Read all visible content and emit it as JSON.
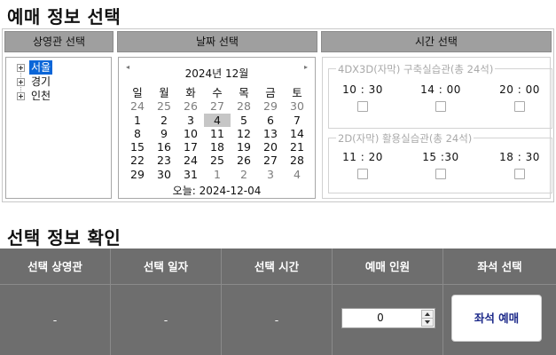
{
  "headings": {
    "select": "예매 정보 선택",
    "confirm": "선택 정보 확인"
  },
  "theater": {
    "header": "상영관 선택",
    "items": [
      {
        "label": "서울",
        "selected": true
      },
      {
        "label": "경기",
        "selected": false
      },
      {
        "label": "인천",
        "selected": false
      }
    ]
  },
  "date": {
    "header": "날짜 선택",
    "prev_icon": "◂",
    "next_icon": "▸",
    "month_label": "2024년 12월",
    "weekdays": [
      "일",
      "월",
      "화",
      "수",
      "목",
      "금",
      "토"
    ],
    "weeks": [
      [
        "24",
        "25",
        "26",
        "27",
        "28",
        "29",
        "30"
      ],
      [
        "1",
        "2",
        "3",
        "4",
        "5",
        "6",
        "7"
      ],
      [
        "8",
        "9",
        "10",
        "11",
        "12",
        "13",
        "14"
      ],
      [
        "15",
        "16",
        "17",
        "18",
        "19",
        "20",
        "21"
      ],
      [
        "22",
        "23",
        "24",
        "25",
        "26",
        "27",
        "28"
      ],
      [
        "29",
        "30",
        "31",
        "1",
        "2",
        "3",
        "4"
      ]
    ],
    "today_label": "오늘: 2024-12-04"
  },
  "time": {
    "header": "시간 선택",
    "groups": [
      {
        "title": "4DX3D(자막) 구축실습관(총 24석)",
        "slots": [
          "10 : 30",
          "14 : 00",
          "20 : 00"
        ]
      },
      {
        "title": "2D(자막) 활용실습관(총 24석)",
        "slots": [
          "11 : 20",
          "15 :30",
          "18 : 30"
        ]
      }
    ]
  },
  "confirm": {
    "columns": [
      "선택 상영관",
      "선택 일자",
      "선택 시간",
      "예매 인원",
      "좌석 선택"
    ],
    "theater_value": "-",
    "date_value": "-",
    "time_value": "-",
    "people_value": "0",
    "seat_button": "좌석 예매"
  }
}
